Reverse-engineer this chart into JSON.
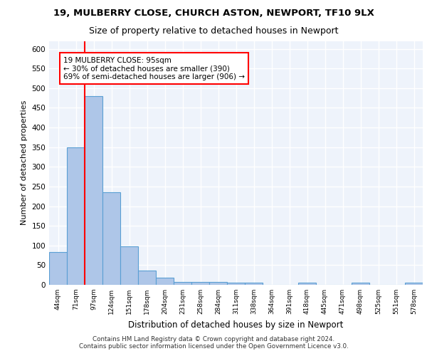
{
  "title1": "19, MULBERRY CLOSE, CHURCH ASTON, NEWPORT, TF10 9LX",
  "title2": "Size of property relative to detached houses in Newport",
  "xlabel": "Distribution of detached houses by size in Newport",
  "ylabel": "Number of detached properties",
  "bar_values": [
    83,
    350,
    480,
    235,
    98,
    37,
    18,
    8,
    8,
    8,
    5,
    5,
    0,
    0,
    5,
    0,
    0,
    5,
    0,
    0,
    5
  ],
  "bin_labels": [
    "44sqm",
    "71sqm",
    "97sqm",
    "124sqm",
    "151sqm",
    "178sqm",
    "204sqm",
    "231sqm",
    "258sqm",
    "284sqm",
    "311sqm",
    "338sqm",
    "364sqm",
    "391sqm",
    "418sqm",
    "445sqm",
    "471sqm",
    "498sqm",
    "525sqm",
    "551sqm",
    "578sqm"
  ],
  "bar_color": "#aec6e8",
  "bar_edge_color": "#5a9fd4",
  "red_line_bin": 2,
  "annotation_text": "19 MULBERRY CLOSE: 95sqm\n← 30% of detached houses are smaller (390)\n69% of semi-detached houses are larger (906) →",
  "footer_line1": "Contains HM Land Registry data © Crown copyright and database right 2024.",
  "footer_line2": "Contains public sector information licensed under the Open Government Licence v3.0.",
  "ylim": [
    0,
    620
  ],
  "yticks": [
    0,
    50,
    100,
    150,
    200,
    250,
    300,
    350,
    400,
    450,
    500,
    550,
    600
  ],
  "background_color": "#eef3fb",
  "grid_color": "white",
  "fig_bg_color": "white"
}
